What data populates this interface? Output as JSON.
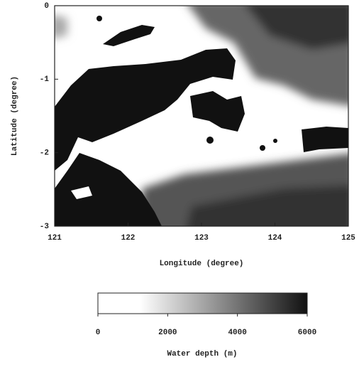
{
  "chart_data": {
    "type": "map",
    "xlabel": "Longitude (degree)",
    "ylabel": "Latitude (degree)",
    "xlim": [
      121,
      125
    ],
    "xticks": [
      121,
      122,
      123,
      124,
      125
    ],
    "ylim": [
      -3,
      0
    ],
    "yticks": [
      0,
      -1,
      -2,
      -3
    ],
    "colorbar": {
      "label": "Water depth (m)",
      "lim": [
        0,
        6000
      ],
      "ticks": [
        0,
        2000,
        4000,
        6000
      ],
      "colors": [
        "#ffffff",
        "#111111"
      ]
    }
  }
}
